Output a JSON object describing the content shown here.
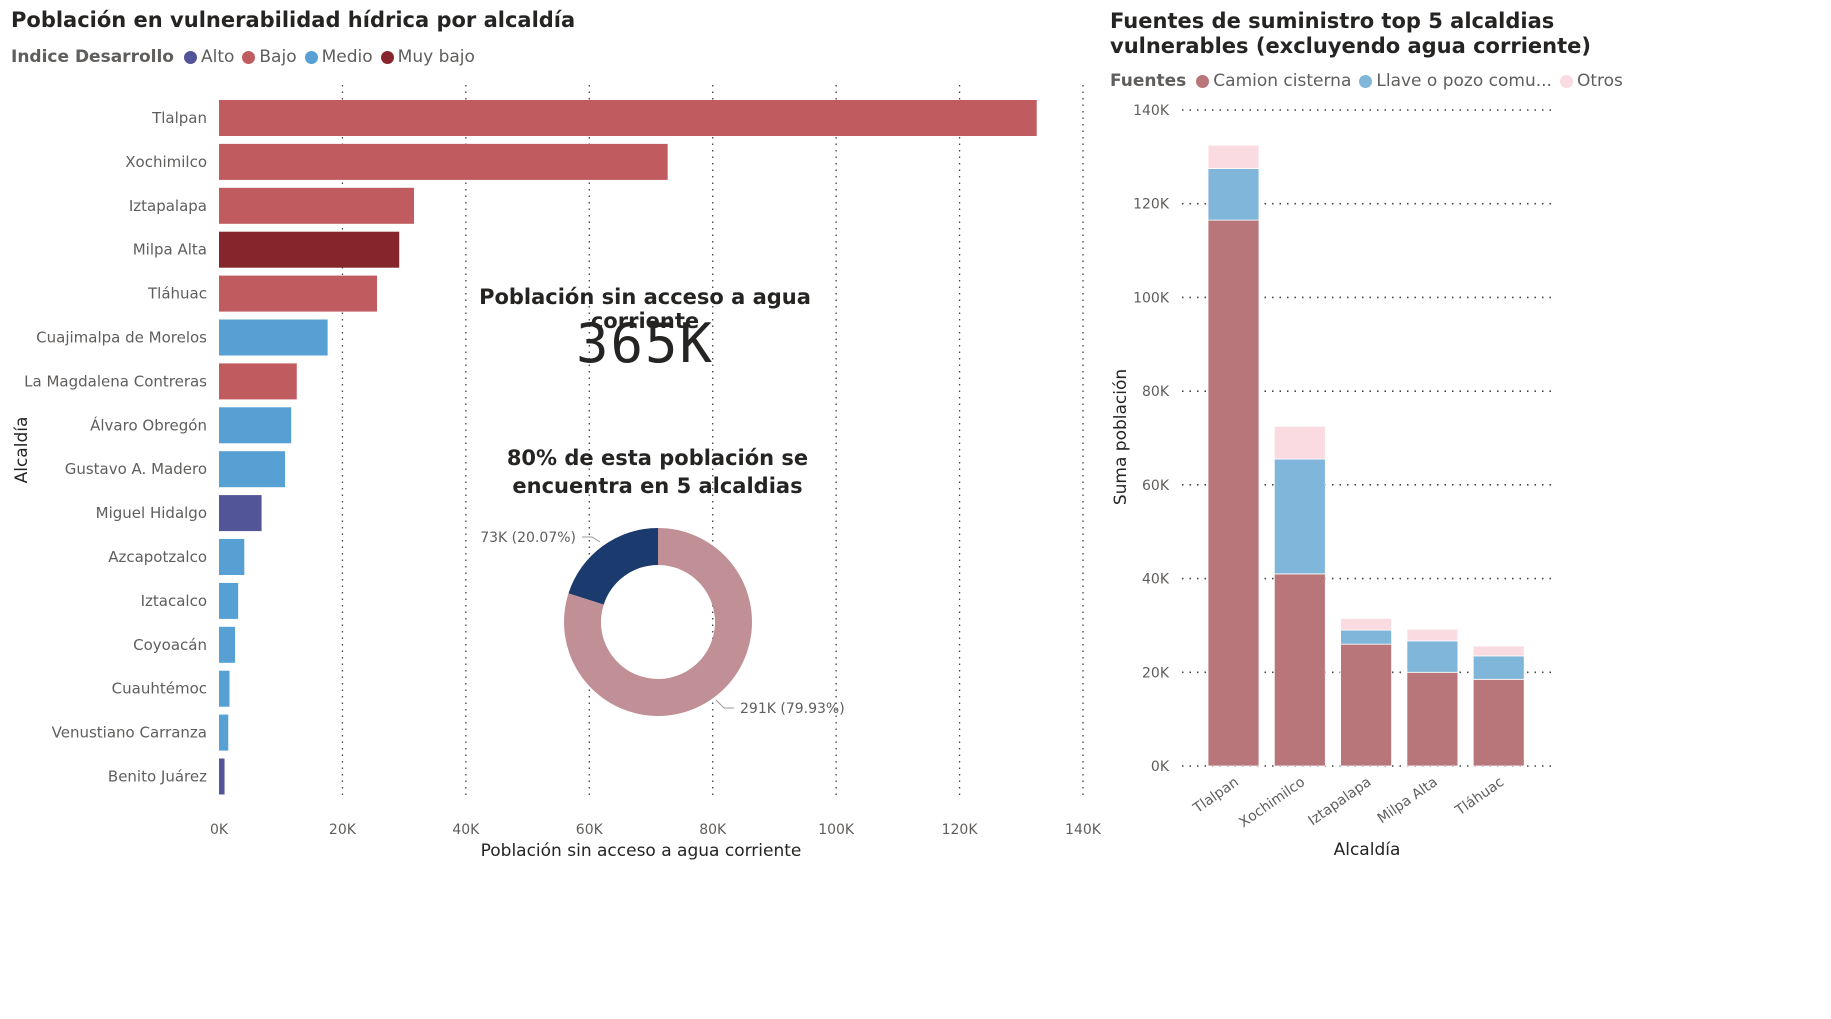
{
  "bar_chart": {
    "title": "Población en vulnerabilidad hídrica por alcaldía",
    "legend_title": "Indice Desarrollo",
    "legend": [
      {
        "label": "Alto",
        "color": "#525598"
      },
      {
        "label": "Bajo",
        "color": "#c05b5f"
      },
      {
        "label": "Medio",
        "color": "#56a0d3"
      },
      {
        "label": "Muy bajo",
        "color": "#86252b"
      }
    ],
    "xlabel": "Población sin acceso a agua corriente",
    "ylabel": "Alcaldía"
  },
  "kpi": {
    "label": "Población sin acceso a agua corriente",
    "value": "365K"
  },
  "donut": {
    "title": "80% de esta población se encuentra en 5 alcaldias",
    "slices": [
      {
        "label": "73K (20.07%)",
        "value": 20.07,
        "color": "#1b3a6e"
      },
      {
        "label": "291K (79.93%)",
        "value": 79.93,
        "color": "#c09096"
      }
    ]
  },
  "stack_chart": {
    "title_line1": "Fuentes de suministro top 5 alcaldias",
    "title_line2": "vulnerables (excluyendo agua corriente)",
    "legend_title": "Fuentes",
    "legend": [
      {
        "label": "Camion cisterna",
        "color": "#b9767a"
      },
      {
        "label": "Llave o pozo comu...",
        "color": "#80b6da"
      },
      {
        "label": "Otros",
        "color": "#fbdbe2"
      }
    ],
    "ylabel": "Suma población",
    "xlabel": "Alcaldía"
  },
  "chart_data": [
    {
      "type": "bar",
      "orientation": "horizontal",
      "title": "Población en vulnerabilidad hídrica por alcaldía",
      "xlabel": "Población sin acceso a agua corriente",
      "ylabel": "Alcaldía",
      "xlim": [
        0,
        140000
      ],
      "xticks": [
        0,
        20000,
        40000,
        60000,
        80000,
        100000,
        120000,
        140000
      ],
      "xtick_labels": [
        "0K",
        "20K",
        "40K",
        "60K",
        "80K",
        "100K",
        "120K",
        "140K"
      ],
      "categories": [
        "Tlalpan",
        "Xochimilco",
        "Iztapalapa",
        "Milpa Alta",
        "Tláhuac",
        "Cuajimalpa de Morelos",
        "La Magdalena Contreras",
        "Álvaro Obregón",
        "Gustavo A. Madero",
        "Miguel Hidalgo",
        "Azcapotzalco",
        "Iztacalco",
        "Coyoacán",
        "Cuauhtémoc",
        "Venustiano Carranza",
        "Benito Juárez"
      ],
      "values": [
        132500,
        72700,
        31600,
        29200,
        25600,
        17600,
        12600,
        11700,
        10700,
        6900,
        4100,
        3100,
        2600,
        1700,
        1500,
        900
      ],
      "groups": [
        "Bajo",
        "Bajo",
        "Bajo",
        "Muy bajo",
        "Bajo",
        "Medio",
        "Bajo",
        "Medio",
        "Medio",
        "Alto",
        "Medio",
        "Medio",
        "Medio",
        "Medio",
        "Medio",
        "Alto"
      ],
      "legend_title": "Indice Desarrollo",
      "legend_position": "top-left",
      "grid": true
    },
    {
      "type": "pie",
      "donut": true,
      "title": "80% de esta población se encuentra en 5 alcaldias",
      "values": [
        73000,
        291000
      ],
      "percentages": [
        20.07,
        79.93
      ],
      "labels": [
        "73K (20.07%)",
        "291K (79.93%)"
      ]
    },
    {
      "type": "bar",
      "stacked": true,
      "title": "Fuentes de suministro top 5 alcaldias vulnerables (excluyendo agua corriente)",
      "xlabel": "Alcaldía",
      "ylabel": "Suma población",
      "ylim": [
        0,
        140000
      ],
      "yticks": [
        0,
        20000,
        40000,
        60000,
        80000,
        100000,
        120000,
        140000
      ],
      "ytick_labels": [
        "0K",
        "20K",
        "40K",
        "60K",
        "80K",
        "100K",
        "120K",
        "140K"
      ],
      "categories": [
        "Tlalpan",
        "Xochimilco",
        "Iztapalapa",
        "Milpa Alta",
        "Tláhuac"
      ],
      "series": [
        {
          "name": "Camion cisterna",
          "values": [
            116500,
            41000,
            26000,
            20000,
            18500
          ]
        },
        {
          "name": "Llave o pozo comu...",
          "values": [
            11000,
            24500,
            3000,
            6700,
            5000
          ]
        },
        {
          "name": "Otros",
          "values": [
            5000,
            7000,
            2500,
            2500,
            2100
          ]
        }
      ],
      "legend_title": "Fuentes",
      "legend_position": "top-left",
      "grid": true
    }
  ]
}
